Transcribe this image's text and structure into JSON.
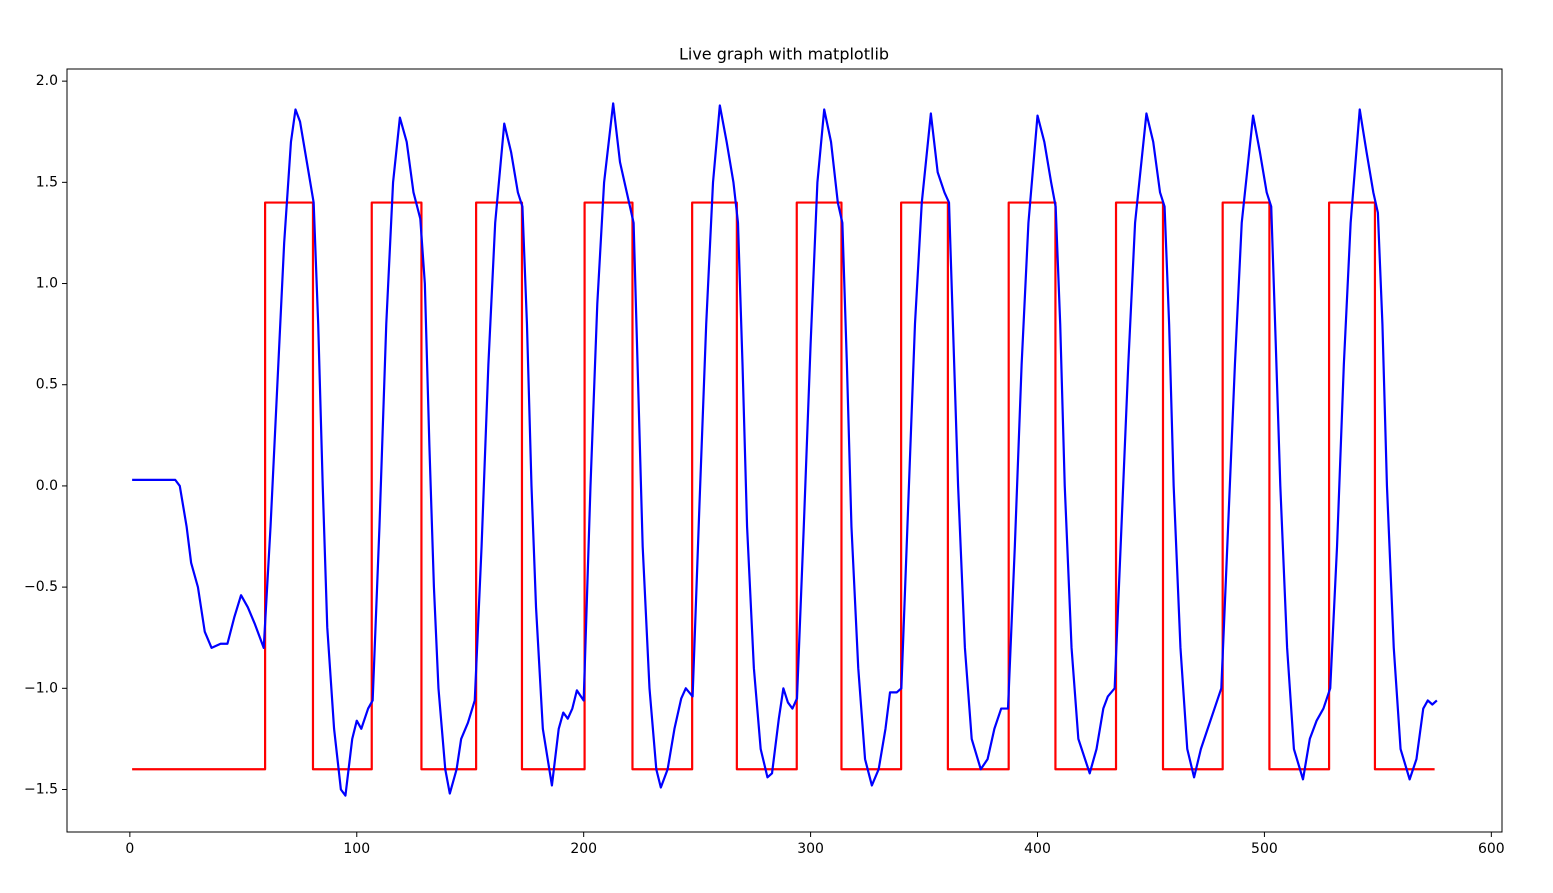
{
  "chart_data": {
    "type": "line",
    "title": "Live graph with matplotlib",
    "xlim": [
      -27.7,
      604.7
    ],
    "ylim": [
      -1.71,
      2.06
    ],
    "xticks": [
      0,
      100,
      200,
      300,
      400,
      500,
      600
    ],
    "yticks": [
      {
        "value": -1.5,
        "label": "−1.5"
      },
      {
        "value": -1.0,
        "label": "−1.0"
      },
      {
        "value": -0.5,
        "label": "−0.5"
      },
      {
        "value": 0.0,
        "label": "0.0"
      },
      0.5,
      {
        "value": 1.0,
        "label": "1.0"
      },
      1.5,
      {
        "value": 2.0,
        "label": "2.0"
      }
    ],
    "grid": false,
    "series": [
      {
        "color": "#ff0000",
        "x": [
          1,
          59.6,
          59.6,
          80.7,
          80.7,
          106.6,
          106.6,
          128.5,
          128.5,
          152.6,
          152.6,
          172.8,
          172.8,
          200.4,
          200.4,
          221.5,
          221.5,
          247.8,
          247.8,
          267.5,
          267.5,
          293.9,
          293.9,
          313.6,
          313.6,
          339.9,
          339.9,
          360.5,
          360.5,
          387.3,
          387.3,
          407.9,
          407.9,
          434.6,
          434.6,
          455.3,
          455.3,
          481.6,
          481.6,
          502.2,
          502.2,
          528.5,
          528.5,
          548.7,
          548.7,
          575
        ],
        "values": [
          -1.4,
          -1.4,
          1.4,
          1.4,
          -1.4,
          -1.4,
          1.4,
          1.4,
          -1.4,
          -1.4,
          1.4,
          1.4,
          -1.4,
          -1.4,
          1.4,
          1.4,
          -1.4,
          -1.4,
          1.4,
          1.4,
          -1.4,
          -1.4,
          1.4,
          1.4,
          -1.4,
          -1.4,
          1.4,
          1.4,
          -1.4,
          -1.4,
          1.4,
          1.4,
          -1.4,
          -1.4,
          1.4,
          1.4,
          -1.4,
          -1.4,
          1.4,
          1.4,
          -1.4,
          -1.4,
          1.4,
          1.4,
          -1.4,
          -1.4
        ]
      },
      {
        "color": "#0000ff",
        "x": [
          1,
          5,
          10,
          15,
          20,
          22,
          25,
          27,
          30,
          33,
          36,
          40,
          43,
          46,
          49,
          52,
          55,
          59,
          62,
          65,
          68,
          71,
          73,
          75,
          78,
          81,
          83,
          85,
          87,
          90,
          93,
          95,
          98,
          100,
          102,
          105,
          107,
          110,
          113,
          116,
          119,
          122,
          125,
          128,
          130,
          132,
          134,
          136,
          139,
          141,
          144,
          146,
          149,
          152,
          155,
          158,
          161,
          165,
          168,
          171,
          173,
          175,
          177,
          179,
          182,
          186,
          189,
          191,
          193,
          195,
          197,
          200,
          203,
          206,
          209,
          213,
          216,
          219,
          222,
          224,
          226,
          229,
          232,
          234,
          237,
          240,
          243,
          245,
          248,
          251,
          254,
          257,
          260,
          263,
          266,
          268,
          270,
          272,
          275,
          278,
          281,
          283,
          286,
          288,
          290,
          292,
          294,
          297,
          300,
          303,
          306,
          309,
          312,
          314,
          316,
          318,
          321,
          324,
          327,
          330,
          333,
          335,
          338,
          340,
          343,
          346,
          349,
          353,
          356,
          359,
          361,
          363,
          365,
          368,
          371,
          375,
          378,
          381,
          384,
          387,
          390,
          393,
          396,
          400,
          403,
          406,
          408,
          410,
          412,
          415,
          418,
          423,
          426,
          429,
          431,
          434,
          437,
          440,
          443,
          448,
          451,
          454,
          456,
          458,
          460,
          463,
          466,
          469,
          472,
          475,
          478,
          481,
          484,
          487,
          490,
          495,
          498,
          501,
          503,
          505,
          507,
          510,
          513,
          517,
          520,
          523,
          526,
          529,
          532,
          535,
          538,
          542,
          545,
          548,
          550,
          552,
          554,
          557,
          560,
          564,
          567,
          570,
          572,
          574,
          576
        ],
        "values": [
          0.03,
          0.03,
          0.03,
          0.03,
          0.03,
          0.0,
          -0.2,
          -0.38,
          -0.5,
          -0.72,
          -0.8,
          -0.78,
          -0.78,
          -0.65,
          -0.54,
          -0.6,
          -0.68,
          -0.8,
          -0.2,
          0.5,
          1.2,
          1.7,
          1.86,
          1.8,
          1.6,
          1.4,
          0.8,
          0.0,
          -0.7,
          -1.2,
          -1.5,
          -1.53,
          -1.25,
          -1.16,
          -1.2,
          -1.1,
          -1.06,
          -0.2,
          0.8,
          1.5,
          1.82,
          1.7,
          1.45,
          1.32,
          1.0,
          0.2,
          -0.5,
          -1.0,
          -1.4,
          -1.52,
          -1.4,
          -1.25,
          -1.17,
          -1.06,
          -0.3,
          0.6,
          1.3,
          1.79,
          1.65,
          1.45,
          1.38,
          0.8,
          0.0,
          -0.6,
          -1.2,
          -1.48,
          -1.2,
          -1.12,
          -1.15,
          -1.1,
          -1.01,
          -1.06,
          0.0,
          0.9,
          1.5,
          1.89,
          1.6,
          1.45,
          1.3,
          0.5,
          -0.3,
          -1.0,
          -1.4,
          -1.49,
          -1.4,
          -1.2,
          -1.05,
          -1.0,
          -1.04,
          -0.1,
          0.8,
          1.5,
          1.88,
          1.7,
          1.5,
          1.3,
          0.6,
          -0.2,
          -0.9,
          -1.3,
          -1.44,
          -1.42,
          -1.15,
          -1.0,
          -1.07,
          -1.1,
          -1.05,
          -0.2,
          0.7,
          1.5,
          1.86,
          1.7,
          1.4,
          1.3,
          0.6,
          -0.2,
          -0.9,
          -1.35,
          -1.48,
          -1.4,
          -1.2,
          -1.02,
          -1.02,
          -1.0,
          -0.1,
          0.8,
          1.4,
          1.84,
          1.55,
          1.45,
          1.4,
          0.7,
          0.0,
          -0.8,
          -1.25,
          -1.4,
          -1.35,
          -1.2,
          -1.1,
          -1.1,
          -0.3,
          0.6,
          1.3,
          1.83,
          1.7,
          1.5,
          1.38,
          0.8,
          0.0,
          -0.8,
          -1.25,
          -1.42,
          -1.3,
          -1.1,
          -1.04,
          -1.0,
          -0.2,
          0.6,
          1.3,
          1.84,
          1.7,
          1.45,
          1.38,
          0.8,
          0.0,
          -0.8,
          -1.3,
          -1.44,
          -1.3,
          -1.2,
          -1.1,
          -1.0,
          -0.2,
          0.6,
          1.3,
          1.83,
          1.65,
          1.45,
          1.38,
          0.7,
          0.0,
          -0.8,
          -1.3,
          -1.45,
          -1.25,
          -1.16,
          -1.1,
          -1.0,
          -0.3,
          0.6,
          1.3,
          1.86,
          1.65,
          1.45,
          1.35,
          0.8,
          0.0,
          -0.8,
          -1.3,
          -1.45,
          -1.35,
          -1.1,
          -1.06,
          -1.08,
          -1.06
        ]
      }
    ]
  }
}
